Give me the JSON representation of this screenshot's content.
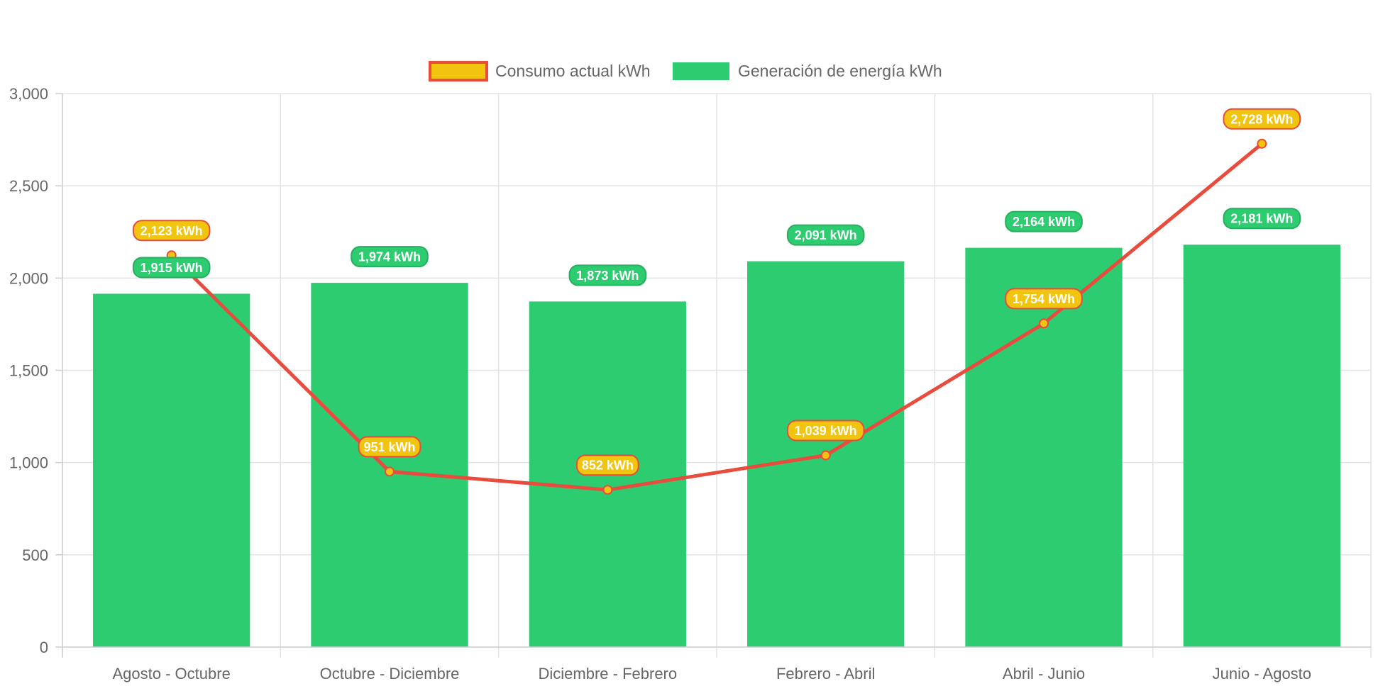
{
  "chart_data": {
    "type": "bar",
    "categories": [
      "Agosto - Octubre",
      "Octubre - Diciembre",
      "Diciembre - Febrero",
      "Febrero - Abril",
      "Abril - Junio",
      "Junio - Agosto"
    ],
    "series": [
      {
        "name": "Consumo actual kWh",
        "type": "line",
        "values": [
          2123,
          951,
          852,
          1039,
          1754,
          2728
        ],
        "labels": [
          "2,123 kWh",
          "951 kWh",
          "852 kWh",
          "1,039 kWh",
          "1,754 kWh",
          "2,728 kWh"
        ],
        "line_color": "#e74c3c",
        "fill_color": "#f1c40f"
      },
      {
        "name": "Generación de energía kWh",
        "type": "bar",
        "values": [
          1915,
          1974,
          1873,
          2091,
          2164,
          2181
        ],
        "labels": [
          "1,915 kWh",
          "1,974 kWh",
          "1,873 kWh",
          "2,091 kWh",
          "2,164 kWh",
          "2,181 kWh"
        ],
        "fill_color": "#2ecc71",
        "border_color": "#27ae60"
      }
    ],
    "ylim": [
      0,
      3000
    ],
    "y_ticks": [
      0,
      500,
      1000,
      1500,
      2000,
      2500,
      3000
    ],
    "y_tick_labels": [
      "0",
      "500",
      "1,000",
      "1,500",
      "2,000",
      "2,500",
      "3,000"
    ],
    "grid": true,
    "legend_position": "top-center",
    "title": "",
    "xlabel": "",
    "ylabel": ""
  }
}
